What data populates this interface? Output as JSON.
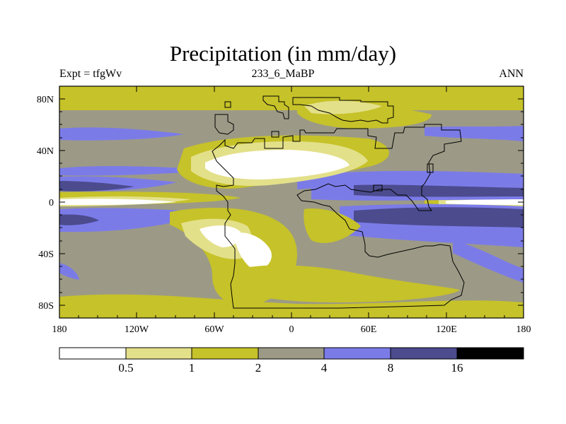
{
  "title": "Precipitation (in mm/day)",
  "subtitle_left": "Expt = tfgWv",
  "subtitle_center": "233_6_MaBP",
  "subtitle_right": "ANN",
  "lat_labels": [
    "80N",
    "40N",
    "0",
    "40S",
    "80S"
  ],
  "lon_labels": [
    "180",
    "120W",
    "60W",
    "0",
    "60E",
    "120E",
    "180"
  ],
  "colorbar": {
    "colors": [
      "#ffffff",
      "#e3e08a",
      "#c6c229",
      "#9c9a86",
      "#7b7be8",
      "#4b4b8e",
      "#000000"
    ],
    "labels": [
      "0.5",
      "1",
      "2",
      "4",
      "8",
      "16"
    ]
  }
}
